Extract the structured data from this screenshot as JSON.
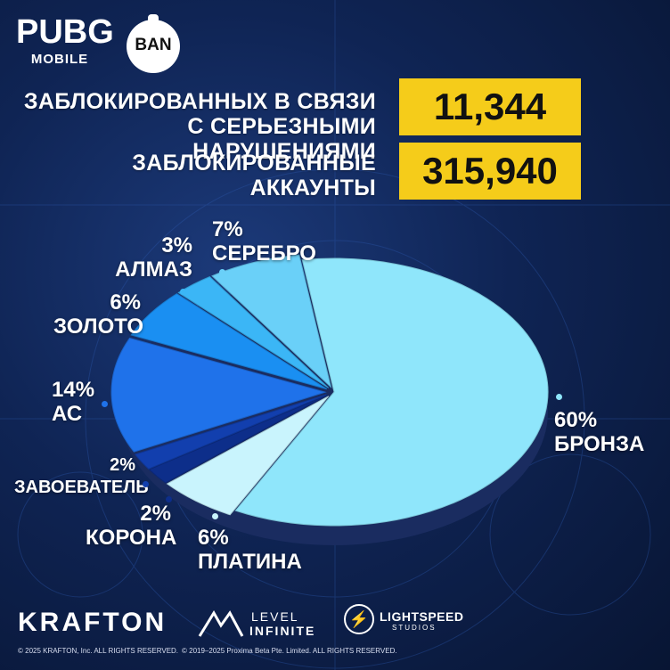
{
  "branding": {
    "pubg_title": "PUBG",
    "pubg_subtitle": "MOBILE",
    "ban_label": "BAN"
  },
  "stats": [
    {
      "label_line1": "ЗАБЛОКИРОВАННЫХ В СВЯЗИ",
      "label_line2": "С СЕРЬЕЗНЫМИ НАРУШЕНИЯМИ",
      "value": "11,344"
    },
    {
      "label_line1": "ЗАБЛОКИРОВАННЫЕ",
      "label_line2": "АККАУНТЫ",
      "value": "315,940"
    }
  ],
  "chart_data": {
    "type": "pie",
    "style": "3d-exploded-ellipse",
    "title": "",
    "unit": "%",
    "slices": [
      {
        "name": "БРОНЗА",
        "value": 60,
        "pct_label": "60%",
        "color": "#8fe6fb"
      },
      {
        "name": "ПЛАТИНА",
        "value": 6,
        "pct_label": "6%",
        "color": "#c9f4fd"
      },
      {
        "name": "КОРОНА",
        "value": 2,
        "pct_label": "2%",
        "color": "#0d2e8a"
      },
      {
        "name": "ЗАВОЕВАТЕЛЬ",
        "value": 2,
        "pct_label": "2%",
        "color": "#123fae"
      },
      {
        "name": "АС",
        "value": 14,
        "pct_label": "14%",
        "color": "#1f72ea"
      },
      {
        "name": "ЗОЛОТО",
        "value": 6,
        "pct_label": "6%",
        "color": "#1a8ff2"
      },
      {
        "name": "АЛМАЗ",
        "value": 3,
        "pct_label": "3%",
        "color": "#3bb6f6"
      },
      {
        "name": "СЕРЕБРО",
        "value": 7,
        "pct_label": "7%",
        "color": "#6ad0f8"
      }
    ],
    "legend": "none (labels beside slices)"
  },
  "footer": {
    "krafton": "KRAFTON",
    "level_infinite_line1": "LEVEL",
    "level_infinite_line2": "INFINITE",
    "lightspeed_line1": "LIGHTSPEED",
    "lightspeed_line2": "STUDIOS",
    "copyright_krafton": "© 2025 KRAFTON, Inc. ALL RIGHTS RESERVED.",
    "copyright_proxima": "© 2019–2025 Proxima Beta Pte. Limited. ALL RIGHTS RESERVED."
  }
}
